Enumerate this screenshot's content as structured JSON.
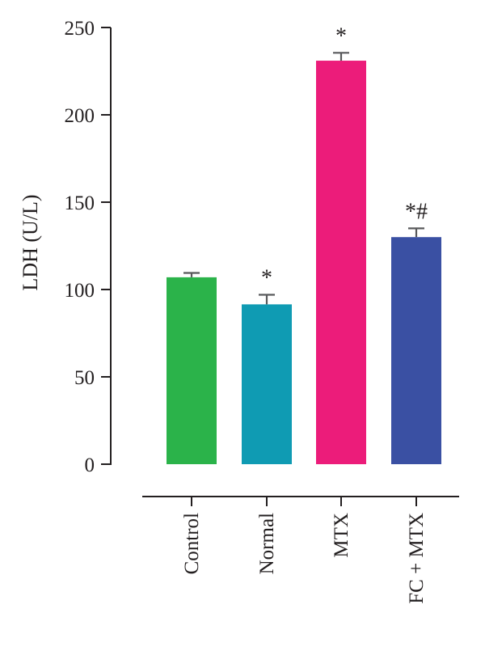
{
  "chart_data": {
    "type": "bar",
    "categories": [
      "Control",
      "Normal",
      "MTX",
      "FC + MTX"
    ],
    "values": [
      107,
      91.5,
      231,
      130
    ],
    "errors": [
      2.5,
      5.5,
      4.5,
      5
    ],
    "annotations": [
      "",
      "*",
      "*",
      "*#"
    ],
    "colors": [
      "#2bb34a",
      "#0f9bb3",
      "#ec1c7a",
      "#3a50a3"
    ],
    "title": "",
    "xlabel": "",
    "ylabel": "LDH (U/L)",
    "ylim": [
      0,
      250
    ],
    "yticks": [
      0,
      50,
      100,
      150,
      200,
      250
    ],
    "grid": false
  }
}
